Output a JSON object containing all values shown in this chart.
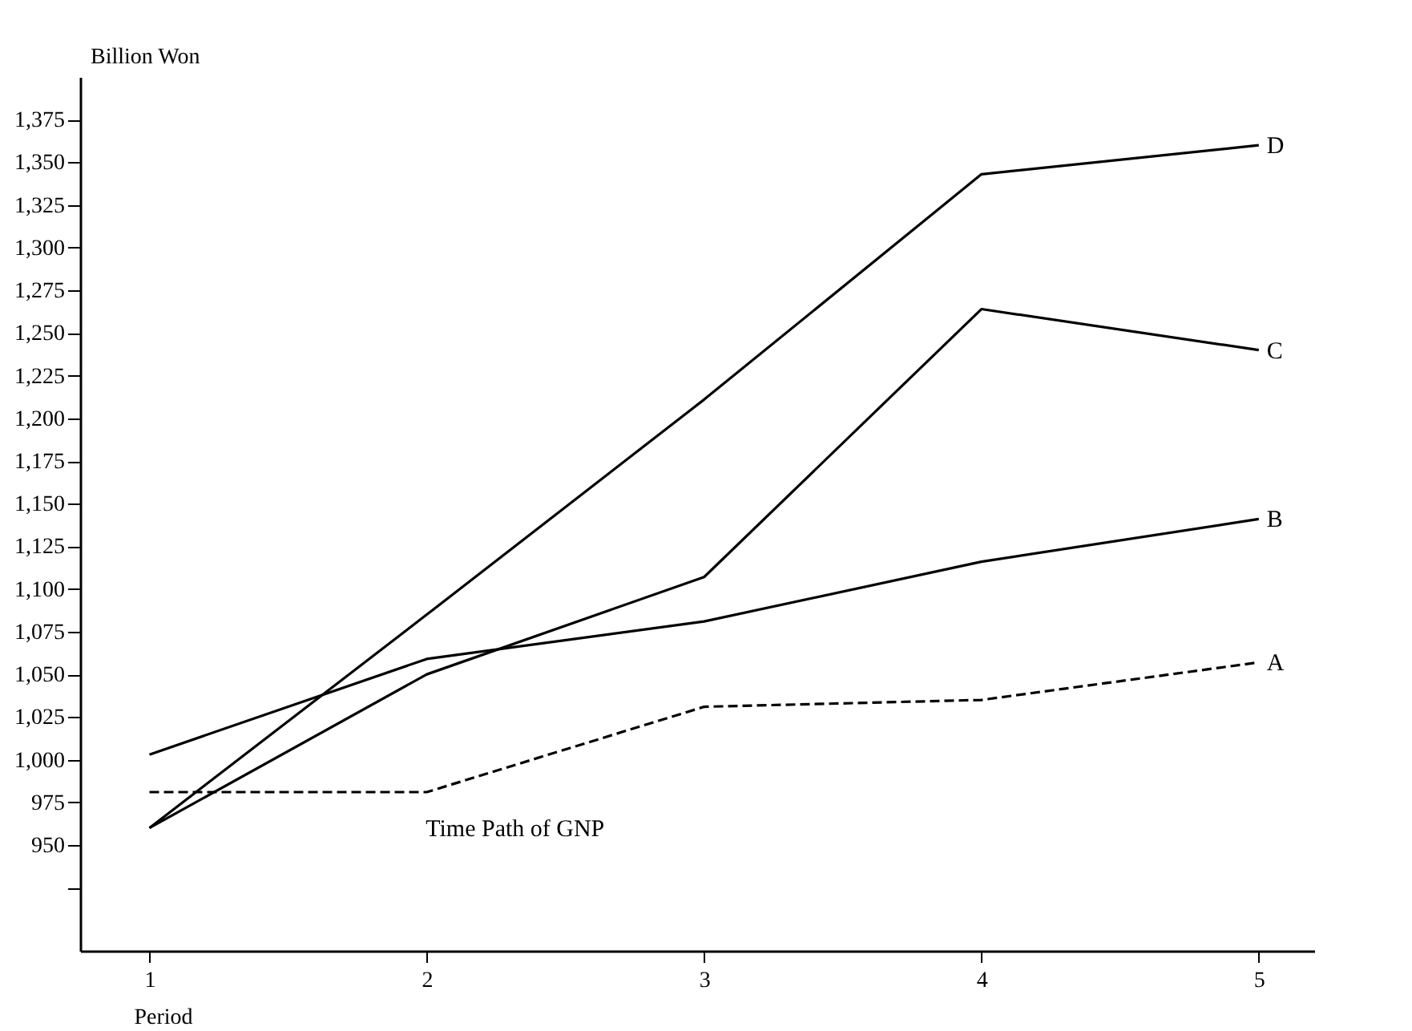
{
  "chart_data": {
    "type": "line",
    "annotations": [
      "Time Path of GNP"
    ],
    "xlabel": "Period",
    "ylabel": "Billion Won",
    "x": [
      1,
      2,
      3,
      4,
      5
    ],
    "series": [
      {
        "name": "A",
        "color": "#000000",
        "line_style": "dashed",
        "values": [
          981,
          981,
          1031,
          1035,
          1057
        ]
      },
      {
        "name": "B",
        "color": "#000000",
        "line_style": "solid",
        "values": [
          1003,
          1059,
          1081,
          1116,
          1141
        ]
      },
      {
        "name": "C",
        "color": "#000000",
        "line_style": "solid",
        "values": [
          960,
          1050,
          1107,
          1264,
          1240
        ]
      },
      {
        "name": "D",
        "color": "#000000",
        "line_style": "solid",
        "values": [
          960,
          1085,
          1211,
          1343,
          1360
        ]
      }
    ],
    "xlim": [
      0.75,
      5.2
    ],
    "xticks": [
      1,
      2,
      3,
      4,
      5
    ],
    "ylim": [
      888,
      1400
    ],
    "yticks": [
      {
        "value": 925,
        "label": null
      },
      950,
      975,
      {
        "value": 1000,
        "label": "1,000"
      },
      {
        "value": 1025,
        "label": "1,025"
      },
      {
        "value": 1050,
        "label": "1,050"
      },
      {
        "value": 1075,
        "label": "1,075"
      },
      {
        "value": 1100,
        "label": "1,100"
      },
      {
        "value": 1125,
        "label": "1,125"
      },
      {
        "value": 1150,
        "label": "1,150"
      },
      {
        "value": 1175,
        "label": "1,175"
      },
      {
        "value": 1200,
        "label": "1,200"
      },
      {
        "value": 1225,
        "label": "1,225"
      },
      {
        "value": 1250,
        "label": "1,250"
      },
      {
        "value": 1275,
        "label": "1,275"
      },
      {
        "value": 1300,
        "label": "1,300"
      },
      {
        "value": 1325,
        "label": "1,325"
      },
      {
        "value": 1350,
        "label": "1,350"
      },
      {
        "value": 1375,
        "label": "1,375"
      }
    ],
    "grid": false,
    "legend": false,
    "marker": "none"
  }
}
